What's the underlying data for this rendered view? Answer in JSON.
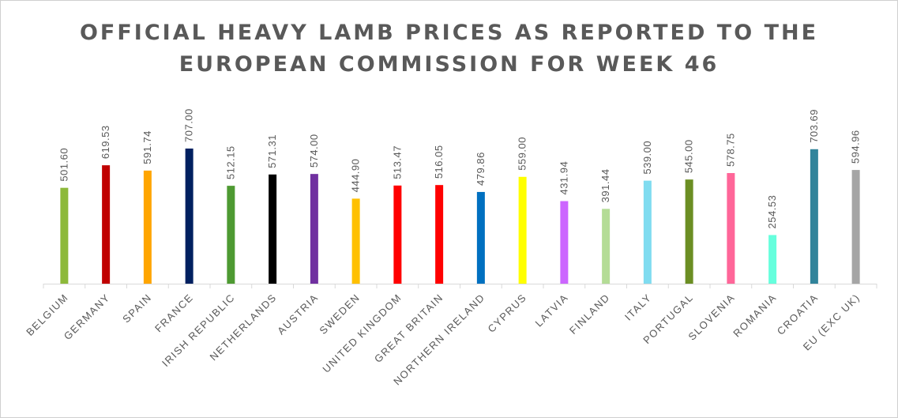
{
  "chart_data": {
    "type": "bar",
    "title_lines": [
      "OFFICIAL HEAVY LAMB PRICES AS REPORTED TO THE",
      "EUROPEAN COMMISSION FOR WEEK 46"
    ],
    "title": "OFFICIAL HEAVY LAMB PRICES AS REPORTED TO THE EUROPEAN COMMISSION FOR WEEK 46",
    "xlabel": "",
    "ylabel": "",
    "ylim": [
      0,
      750
    ],
    "grid": false,
    "categories": [
      "BELGIUM",
      "GERMANY",
      "SPAIN",
      "FRANCE",
      "IRISH REPUBLIC",
      "NETHERLANDS",
      "AUSTRIA",
      "SWEDEN",
      "UNITED KINGDOM",
      "GREAT BRITAIN",
      "NORTHERN IRELAND",
      "CYPRUS",
      "LATVIA",
      "FINLAND",
      "ITALY",
      "PORTUGAL",
      "SLOVENIA",
      "ROMANIA",
      "CROATIA",
      "EU (EXC UK)"
    ],
    "values": [
      501.6,
      619.53,
      591.74,
      707.0,
      512.15,
      571.31,
      574.0,
      444.9,
      513.47,
      516.05,
      479.86,
      559.0,
      431.94,
      391.44,
      539.0,
      545.0,
      578.75,
      254.53,
      703.69,
      594.96
    ],
    "value_labels": [
      "501.60",
      "619.53",
      "591.74",
      "707.00",
      "512.15",
      "571.31",
      "574.00",
      "444.90",
      "513.47",
      "516.05",
      "479.86",
      "559.00",
      "431.94",
      "391.44",
      "539.00",
      "545.00",
      "578.75",
      "254.53",
      "703.69",
      "594.96"
    ],
    "colors": [
      "#8DB93A",
      "#C00000",
      "#FFA500",
      "#002060",
      "#4E9A32",
      "#000000",
      "#7030A0",
      "#FFC000",
      "#FF0000",
      "#FF0000",
      "#0070C0",
      "#FFFF00",
      "#CC66FF",
      "#B4DC96",
      "#80DCF0",
      "#6B8E23",
      "#FF6699",
      "#66FFDD",
      "#31849B",
      "#A5A5A5"
    ]
  }
}
